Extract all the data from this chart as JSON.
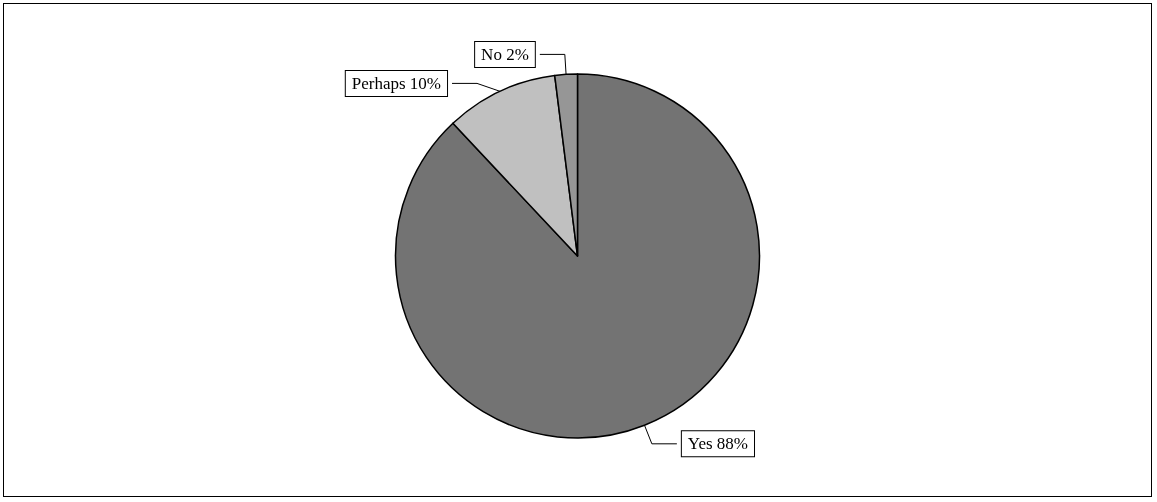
{
  "chart_data": {
    "type": "pie",
    "categories": [
      "Yes",
      "Perhaps",
      "No"
    ],
    "values": [
      88,
      10,
      2
    ],
    "value_labels": [
      "88%",
      "10%",
      "2%"
    ],
    "colors": [
      "#737373",
      "#c0c0c0",
      "#969696"
    ],
    "legend": false
  }
}
